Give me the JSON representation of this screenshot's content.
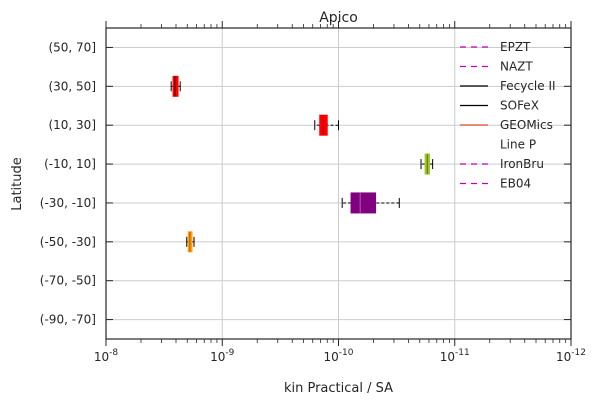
{
  "chart_data": {
    "type": "boxplot",
    "orientation": "horizontal",
    "title": "Apico",
    "xlabel": "kin Practical / SA",
    "ylabel": "Latitude",
    "xscale": "log",
    "x_inverted": true,
    "xlim": [
      1e-08,
      1e-12
    ],
    "x_ticks": [
      {
        "value": 1e-08,
        "base": "10",
        "exp": "-8"
      },
      {
        "value": 1e-09,
        "base": "10",
        "exp": "-9"
      },
      {
        "value": 1e-10,
        "base": "10",
        "exp": "-10"
      },
      {
        "value": 1e-11,
        "base": "10",
        "exp": "-11"
      },
      {
        "value": 1e-12,
        "base": "10",
        "exp": "-12"
      }
    ],
    "categories": [
      "(50, 70]",
      "(30, 50]",
      "(10, 30]",
      "(-10, 10]",
      "(-30, -10]",
      "(-50, -30]",
      "(-70, -50]",
      "(-90, -70]"
    ],
    "grid": true,
    "legend_position": "top-right",
    "boxes": [
      {
        "category": "(30, 50]",
        "whislo": 2.3e-09,
        "q1": 2.4e-09,
        "med": 2.55e-09,
        "q3": 2.65e-09,
        "whishi": 2.75e-09,
        "color": "#ff0000",
        "median_color": "#800000"
      },
      {
        "category": "(10, 30]",
        "whislo": 1e-10,
        "q1": 1.25e-10,
        "med": 1.35e-10,
        "q3": 1.45e-10,
        "whishi": 1.6e-10,
        "color": "#ff0000",
        "median_color": "#cc0000"
      },
      {
        "category": "(-10, 10]",
        "whislo": 1.55e-11,
        "q1": 1.65e-11,
        "med": 1.72e-11,
        "q3": 1.8e-11,
        "whishi": 1.95e-11,
        "color": "#9acd32",
        "median_color": "#808000"
      },
      {
        "category": "(-30, -10]",
        "whislo": 3e-11,
        "q1": 4.8e-11,
        "med": 6.5e-11,
        "q3": 7.8e-11,
        "whishi": 9.3e-11,
        "color": "#800080",
        "median_color": "#a040a0"
      },
      {
        "category": "(-50, -30]",
        "whislo": 1.75e-09,
        "q1": 1.82e-09,
        "med": 1.9e-09,
        "q3": 1.96e-09,
        "whishi": 2.02e-09,
        "color": "#ffa500",
        "median_color": "#cc6600"
      }
    ],
    "legend": [
      {
        "label": "EPZT",
        "color": "#bf00bf",
        "style": "dashed"
      },
      {
        "label": "NAZT",
        "color": "#bf00bf",
        "style": "dashed"
      },
      {
        "label": "Fecycle II",
        "color": "#000000",
        "style": "solid"
      },
      {
        "label": "SOFeX",
        "color": "#000000",
        "style": "solid"
      },
      {
        "label": "GEOMics",
        "color": "#e24a33",
        "style": "solid"
      },
      {
        "label": "Line P",
        "color": "#ffffff",
        "style": "solid"
      },
      {
        "label": "IronBru",
        "color": "#bf00bf",
        "style": "dashed"
      },
      {
        "label": "EB04",
        "color": "#bf00bf",
        "style": "dashed"
      }
    ]
  }
}
